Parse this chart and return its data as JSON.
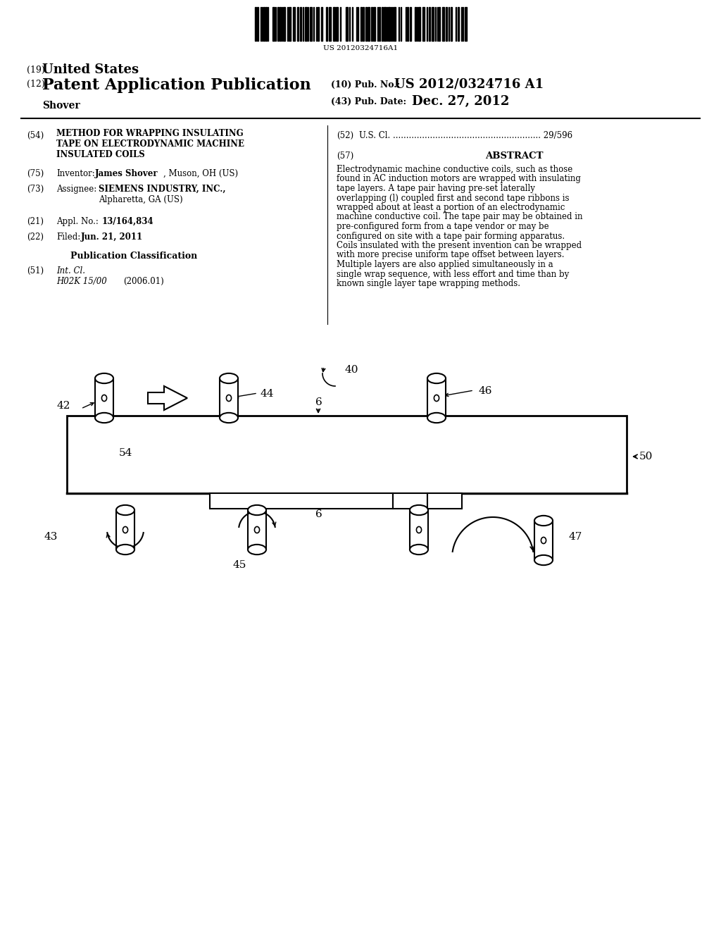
{
  "background_color": "#ffffff",
  "barcode_text": "US 20120324716A1",
  "title_19": "(19)",
  "title_19b": "United States",
  "title_12": "(12)",
  "title_12b": "Patent Application Publication",
  "pub_no_label": "(10) Pub. No.:",
  "pub_no": "US 2012/0324716 A1",
  "inventor_name": "Shover",
  "pub_date_label": "(43) Pub. Date:",
  "pub_date": "Dec. 27, 2012",
  "field54_lines": [
    "METHOD FOR WRAPPING INSULATING",
    "TAPE ON ELECTRODYNAMIC MACHINE",
    "INSULATED COILS"
  ],
  "field52_text": "U.S. Cl. ........................................................ 29/596",
  "field57_title": "ABSTRACT",
  "abstract_text": "Electrodynamic machine conductive coils, such as those found in AC induction motors are wrapped with insulating tape layers. A tape pair having pre-set laterally overlapping (l) coupled first and second tape ribbons is wrapped about at least a portion of an electrodynamic machine conductive coil. The tape pair may be obtained in pre-configured form from a tape vendor or may be configured on site with a tape pair forming apparatus. Coils insulated with the present invention can be wrapped with more precise uniform tape offset between layers. Multiple layers are also applied simultaneously in a single wrap sequence, with less effort and time than by known single layer tape wrapping methods.",
  "inventor_bold": "James Shover",
  "inventor_rest": ", Muson, OH (US)",
  "assignee_bold": "SIEMENS INDUSTRY, INC.,",
  "assignee_rest": "Alpharetta, GA (US)",
  "appl_no_bold": "13/164,834",
  "filed_bold": "Jun. 21, 2011",
  "int_cl_italic": "H02K 15/00",
  "int_cl_year": "(2006.01)"
}
